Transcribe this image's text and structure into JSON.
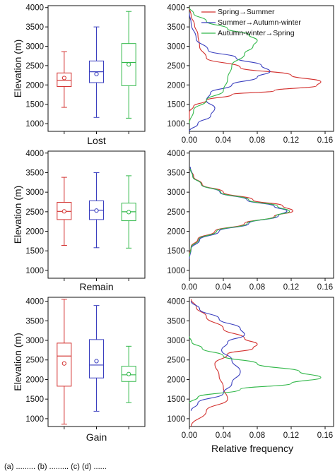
{
  "colors": {
    "spring_summer": "#d3312f",
    "summer_autumn": "#3a3fbf",
    "autumn_spring": "#32b84a",
    "frame": "#111111"
  },
  "figure": {
    "box_ylabel": "Elevation (m)",
    "freq_xlabel": "Relative frequency",
    "bottom_note": "(a) ......... (b) ......... (c) (d) ......"
  },
  "chart_data": [
    {
      "id": "box_lost",
      "type": "box",
      "title": "Lost",
      "ylabel": "Elevation (m)",
      "ylim": [
        800,
        4050
      ],
      "yticks": [
        1000,
        1500,
        2000,
        2500,
        3000,
        3500,
        4000
      ],
      "series": [
        {
          "color_key": "spring_summer",
          "whisker_low": 1420,
          "q1": 1960,
          "median": 2120,
          "q3": 2310,
          "whisker_high": 2860,
          "mean": 2180
        },
        {
          "color_key": "summer_autumn",
          "whisker_low": 1160,
          "q1": 2060,
          "median": 2340,
          "q3": 2620,
          "whisker_high": 3500,
          "mean": 2280
        },
        {
          "color_key": "autumn_spring",
          "whisker_low": 1140,
          "q1": 1980,
          "median": 2580,
          "q3": 3070,
          "whisker_high": 3900,
          "mean": 2530
        }
      ]
    },
    {
      "id": "box_remain",
      "type": "box",
      "title": "Remain",
      "ylabel": "Elevation (m)",
      "ylim": [
        800,
        4050
      ],
      "yticks": [
        1000,
        1500,
        2000,
        2500,
        3000,
        3500,
        4000
      ],
      "series": [
        {
          "color_key": "spring_summer",
          "whisker_low": 1640,
          "q1": 2300,
          "median": 2510,
          "q3": 2740,
          "whisker_high": 3380,
          "mean": 2510
        },
        {
          "color_key": "summer_autumn",
          "whisker_low": 1580,
          "q1": 2300,
          "median": 2540,
          "q3": 2780,
          "whisker_high": 3500,
          "mean": 2530
        },
        {
          "color_key": "autumn_spring",
          "whisker_low": 1570,
          "q1": 2270,
          "median": 2500,
          "q3": 2720,
          "whisker_high": 3420,
          "mean": 2490
        }
      ]
    },
    {
      "id": "box_gain",
      "type": "box",
      "title": "Gain",
      "ylabel": "Elevation (m)",
      "ylim": [
        800,
        4100
      ],
      "yticks": [
        1000,
        1500,
        2000,
        2500,
        3000,
        3500,
        4000
      ],
      "series": [
        {
          "color_key": "spring_summer",
          "whisker_low": 860,
          "q1": 1830,
          "median": 2600,
          "q3": 2930,
          "whisker_high": 4050,
          "mean": 2410
        },
        {
          "color_key": "summer_autumn",
          "whisker_low": 1190,
          "q1": 2040,
          "median": 2370,
          "q3": 3020,
          "whisker_high": 3890,
          "mean": 2470
        },
        {
          "color_key": "autumn_spring",
          "whisker_low": 1410,
          "q1": 1950,
          "median": 2120,
          "q3": 2340,
          "whisker_high": 2850,
          "mean": 2140
        }
      ]
    },
    {
      "id": "freq_lost",
      "type": "line",
      "xlim": [
        0,
        0.17
      ],
      "ylim": [
        800,
        4050
      ],
      "xticks": [
        "0.00",
        "0.04",
        "0.08",
        "0.12",
        "0.16"
      ],
      "yticks": [
        1000,
        1500,
        2000,
        2500,
        3000,
        3500,
        4000
      ],
      "legend": [
        "Spring→Summer",
        "Summer→Autumn-winter",
        "Autumn-winter→Spring"
      ],
      "legend_placement": "top-right",
      "series": [
        {
          "name": "Spring→Summer",
          "color_key": "spring_summer",
          "x": [
            0.0,
            0.0,
            0.005,
            0.02,
            0.05,
            0.1,
            0.15,
            0.155,
            0.12,
            0.06,
            0.02,
            0.012,
            0.01,
            0.006,
            0.002,
            0.0
          ],
          "y": [
            1000,
            1300,
            1450,
            1600,
            1750,
            1850,
            1980,
            2080,
            2250,
            2450,
            2700,
            3000,
            3300,
            3550,
            3800,
            4000
          ]
        },
        {
          "name": "Summer→Autumn-winter",
          "color_key": "summer_autumn",
          "x": [
            0.0,
            0.01,
            0.025,
            0.03,
            0.02,
            0.025,
            0.05,
            0.08,
            0.095,
            0.085,
            0.055,
            0.022,
            0.008,
            0.002,
            0.0
          ],
          "y": [
            800,
            1000,
            1200,
            1400,
            1600,
            1800,
            2000,
            2200,
            2350,
            2500,
            2700,
            2900,
            3200,
            3600,
            3850
          ]
        },
        {
          "name": "Autumn-winter→Spring",
          "color_key": "autumn_spring",
          "x": [
            0.0,
            0.005,
            0.02,
            0.04,
            0.045,
            0.05,
            0.065,
            0.075,
            0.08,
            0.07,
            0.045,
            0.02,
            0.005,
            0.0
          ],
          "y": [
            1000,
            1350,
            1600,
            1850,
            2150,
            2500,
            2800,
            3000,
            3150,
            3300,
            3450,
            3650,
            3850,
            4000
          ]
        }
      ]
    },
    {
      "id": "freq_remain",
      "type": "line",
      "xlim": [
        0,
        0.17
      ],
      "ylim": [
        800,
        4050
      ],
      "xticks": [
        "0.00",
        "0.04",
        "0.08",
        "0.12",
        "0.16"
      ],
      "yticks": [
        1000,
        1500,
        2000,
        2500,
        3000,
        3500,
        4000
      ],
      "series": [
        {
          "name": "Spring→Summer",
          "color_key": "spring_summer",
          "x": [
            0.0,
            0.002,
            0.01,
            0.03,
            0.065,
            0.1,
            0.122,
            0.11,
            0.075,
            0.04,
            0.015,
            0.005,
            0.001
          ],
          "y": [
            1400,
            1600,
            1800,
            2000,
            2200,
            2380,
            2520,
            2650,
            2800,
            3000,
            3200,
            3400,
            3600
          ]
        },
        {
          "name": "Summer→Autumn-winter",
          "color_key": "summer_autumn",
          "x": [
            0.0,
            0.002,
            0.012,
            0.035,
            0.07,
            0.105,
            0.115,
            0.1,
            0.068,
            0.036,
            0.014,
            0.004,
            0.001
          ],
          "y": [
            1300,
            1550,
            1780,
            2000,
            2200,
            2400,
            2520,
            2640,
            2800,
            3000,
            3200,
            3400,
            3650
          ]
        },
        {
          "name": "Autumn-winter→Spring",
          "color_key": "autumn_spring",
          "x": [
            0.0,
            0.002,
            0.011,
            0.032,
            0.068,
            0.102,
            0.118,
            0.104,
            0.07,
            0.037,
            0.014,
            0.004,
            0.001
          ],
          "y": [
            1350,
            1580,
            1790,
            2000,
            2200,
            2390,
            2510,
            2640,
            2800,
            3000,
            3200,
            3400,
            3600
          ]
        }
      ]
    },
    {
      "id": "freq_gain",
      "type": "line",
      "xlim": [
        0,
        0.17
      ],
      "ylim": [
        800,
        4100
      ],
      "xticks": [
        "0.00",
        "0.04",
        "0.08",
        "0.12",
        "0.16"
      ],
      "yticks": [
        1000,
        1500,
        2000,
        2500,
        3000,
        3500,
        4000
      ],
      "xlabel": "Relative frequency",
      "series": [
        {
          "name": "Spring→Summer",
          "color_key": "spring_summer",
          "x": [
            0.002,
            0.02,
            0.045,
            0.04,
            0.035,
            0.03,
            0.045,
            0.075,
            0.08,
            0.065,
            0.04,
            0.02,
            0.008,
            0.002
          ],
          "y": [
            800,
            1200,
            1500,
            1800,
            2100,
            2400,
            2650,
            2800,
            2900,
            3050,
            3300,
            3600,
            3850,
            4050
          ]
        },
        {
          "name": "Summer→Autumn-winter",
          "color_key": "summer_autumn",
          "x": [
            0.002,
            0.01,
            0.04,
            0.05,
            0.06,
            0.05,
            0.038,
            0.045,
            0.065,
            0.06,
            0.035,
            0.012,
            0.002
          ],
          "y": [
            1200,
            1400,
            1650,
            1900,
            2200,
            2500,
            2750,
            2950,
            3150,
            3300,
            3550,
            3800,
            4000
          ]
        },
        {
          "name": "Autumn-winter→Spring",
          "color_key": "autumn_spring",
          "x": [
            0.0,
            0.01,
            0.06,
            0.12,
            0.155,
            0.13,
            0.08,
            0.04,
            0.015,
            0.003,
            0.0
          ],
          "y": [
            1400,
            1550,
            1750,
            1900,
            2050,
            2200,
            2400,
            2600,
            2800,
            2950,
            3100
          ]
        }
      ]
    }
  ]
}
